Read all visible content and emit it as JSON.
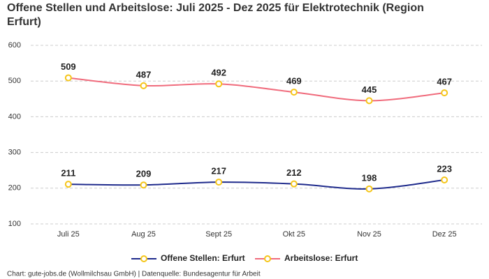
{
  "chart_data": {
    "type": "line",
    "title": "Offene Stellen und Arbeitslose: Juli 2025 - Dez 2025 für Elektrotechnik (Region Erfurt)",
    "categories": [
      "Juli 25",
      "Aug 25",
      "Sept 25",
      "Okt 25",
      "Nov 25",
      "Dez 25"
    ],
    "series": [
      {
        "name": "Offene Stellen: Erfurt",
        "color": "#1f2b8c",
        "values": [
          211,
          209,
          217,
          212,
          198,
          223
        ]
      },
      {
        "name": "Arbeitslose: Erfurt",
        "color": "#f06b7c",
        "values": [
          509,
          487,
          492,
          469,
          445,
          467
        ]
      }
    ],
    "marker_color": "#f5c518",
    "ylim": [
      100,
      600
    ],
    "yticks": [
      100,
      200,
      300,
      400,
      500,
      600
    ],
    "grid": true,
    "legend": "bottom",
    "source": "Chart: gute-jobs.de (Wollmilchsau GmbH) | Datenquelle: Bundesagentur für Arbeit"
  }
}
